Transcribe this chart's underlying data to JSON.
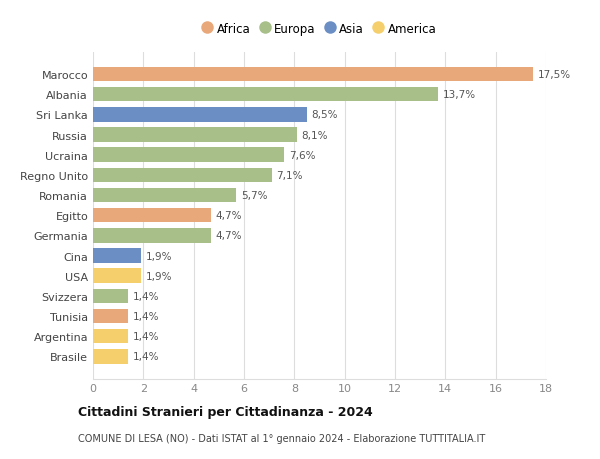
{
  "categories": [
    "Brasile",
    "Argentina",
    "Tunisia",
    "Svizzera",
    "USA",
    "Cina",
    "Germania",
    "Egitto",
    "Romania",
    "Regno Unito",
    "Ucraina",
    "Russia",
    "Sri Lanka",
    "Albania",
    "Marocco"
  ],
  "values": [
    1.4,
    1.4,
    1.4,
    1.4,
    1.9,
    1.9,
    4.7,
    4.7,
    5.7,
    7.1,
    7.6,
    8.1,
    8.5,
    13.7,
    17.5
  ],
  "labels": [
    "1,4%",
    "1,4%",
    "1,4%",
    "1,4%",
    "1,9%",
    "1,9%",
    "4,7%",
    "4,7%",
    "5,7%",
    "7,1%",
    "7,6%",
    "8,1%",
    "8,5%",
    "13,7%",
    "17,5%"
  ],
  "colors": [
    "#f5cf6b",
    "#f5cf6b",
    "#e8a87a",
    "#a8bf8a",
    "#f5cf6b",
    "#6b8fc4",
    "#a8bf8a",
    "#e8a87a",
    "#a8bf8a",
    "#a8bf8a",
    "#a8bf8a",
    "#a8bf8a",
    "#6b8fc4",
    "#a8bf8a",
    "#e8a87a"
  ],
  "legend_labels": [
    "Africa",
    "Europa",
    "Asia",
    "America"
  ],
  "legend_colors": [
    "#e8a87a",
    "#a8bf8a",
    "#6b8fc4",
    "#f5cf6b"
  ],
  "title": "Cittadini Stranieri per Cittadinanza - 2024",
  "subtitle": "COMUNE DI LESA (NO) - Dati ISTAT al 1° gennaio 2024 - Elaborazione TUTTITALIA.IT",
  "xlim": [
    0,
    18
  ],
  "xticks": [
    0,
    2,
    4,
    6,
    8,
    10,
    12,
    14,
    16,
    18
  ],
  "background_color": "#ffffff",
  "grid_color": "#dddddd"
}
